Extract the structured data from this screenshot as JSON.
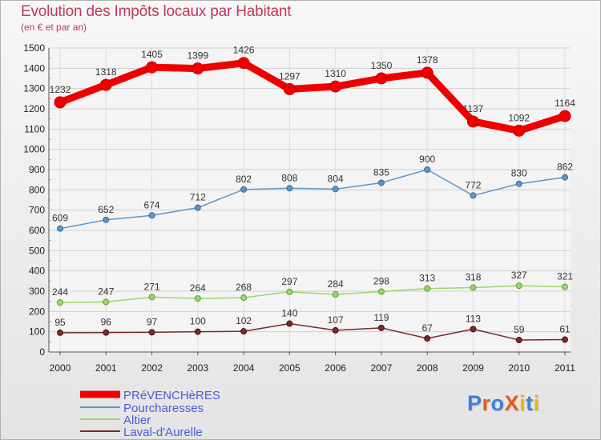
{
  "title": "Evolution des Impôts locaux par Habitant",
  "subtitle": "(en € et par an)",
  "logo": {
    "text": "ProXiti",
    "letter_colors": [
      "#3f7fd8",
      "#e85a1a",
      "#3f7fd8",
      "#e85a1a",
      "#f0b400",
      "#3f7fd8",
      "#f0b400"
    ]
  },
  "chart_data": {
    "type": "line",
    "title": "Evolution des Impôts locaux par Habitant",
    "subtitle": "(en € et par an)",
    "xlabel": "",
    "ylabel": "",
    "x": [
      "2000",
      "2001",
      "2002",
      "2003",
      "2004",
      "2005",
      "2006",
      "2007",
      "2008",
      "2009",
      "2010",
      "2011"
    ],
    "ylim": [
      0,
      1500
    ],
    "yticks": [
      0,
      100,
      200,
      300,
      400,
      500,
      600,
      700,
      800,
      900,
      1000,
      1100,
      1200,
      1300,
      1400,
      1500
    ],
    "grid": true,
    "legend_position": "bottom-left",
    "series": [
      {
        "name": "PRéVENCHèRES",
        "color": "#ee0000",
        "values": [
          1232,
          1318,
          1405,
          1399,
          1426,
          1297,
          1310,
          1350,
          1378,
          1137,
          1092,
          1164
        ]
      },
      {
        "name": "Pourcharesses",
        "color": "#5e96c9",
        "values": [
          609,
          652,
          674,
          712,
          802,
          808,
          804,
          835,
          900,
          772,
          830,
          862
        ]
      },
      {
        "name": "Altier",
        "color": "#9ad66a",
        "values": [
          244,
          247,
          271,
          264,
          268,
          297,
          284,
          298,
          313,
          318,
          327,
          321
        ]
      },
      {
        "name": "Laval-d'Aurelle",
        "color": "#7a2a2a",
        "values": [
          95,
          96,
          97,
          100,
          102,
          140,
          107,
          119,
          67,
          113,
          59,
          61
        ]
      }
    ]
  }
}
